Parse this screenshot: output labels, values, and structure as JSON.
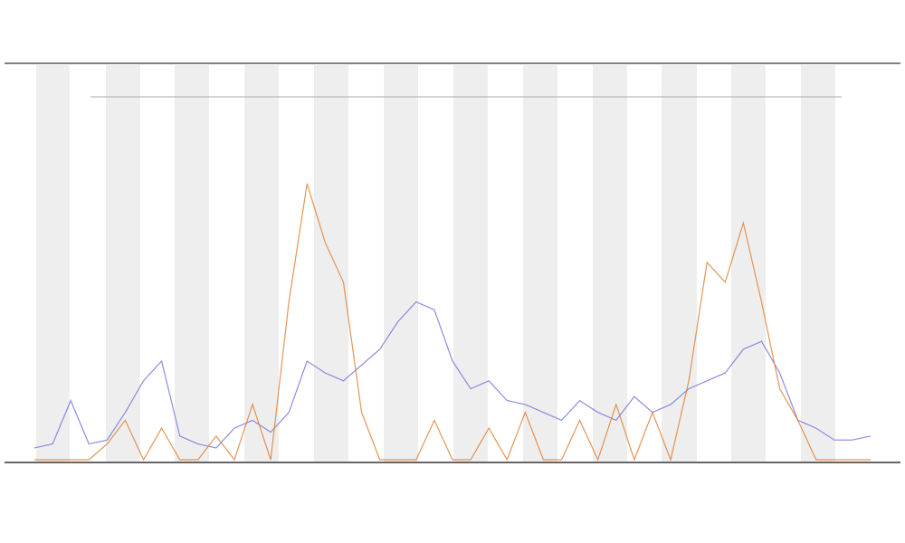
{
  "chart_data": {
    "type": "line",
    "x": [
      0,
      1,
      2,
      3,
      4,
      5,
      6,
      7,
      8,
      9,
      10,
      11,
      12,
      13,
      14,
      15,
      16,
      17,
      18,
      19,
      20,
      21,
      22,
      23,
      24,
      25,
      26,
      27,
      28,
      29,
      30,
      31,
      32,
      33,
      34,
      35,
      36,
      37,
      38,
      39,
      40,
      41,
      42,
      43,
      44,
      45,
      46
    ],
    "xlim": [
      0,
      46
    ],
    "ylim": [
      0,
      100
    ],
    "series": [
      {
        "color": "#6f6fe0",
        "values": [
          3,
          4,
          15,
          4,
          5,
          12,
          20,
          25,
          6,
          4,
          3,
          8,
          10,
          7,
          12,
          25,
          22,
          20,
          24,
          28,
          35,
          40,
          38,
          25,
          18,
          20,
          15,
          14,
          12,
          10,
          15,
          12,
          10,
          16,
          12,
          14,
          18,
          20,
          22,
          28,
          30,
          22,
          10,
          8,
          5,
          5,
          6
        ]
      },
      {
        "color": "#e07a2a",
        "values": [
          0,
          0,
          0,
          0,
          4,
          10,
          0,
          8,
          0,
          0,
          6,
          0,
          14,
          0,
          40,
          70,
          55,
          45,
          12,
          0,
          0,
          0,
          10,
          0,
          0,
          8,
          0,
          12,
          0,
          0,
          10,
          0,
          14,
          0,
          12,
          0,
          20,
          50,
          45,
          60,
          40,
          18,
          10,
          0,
          0,
          0,
          0
        ]
      }
    ]
  }
}
